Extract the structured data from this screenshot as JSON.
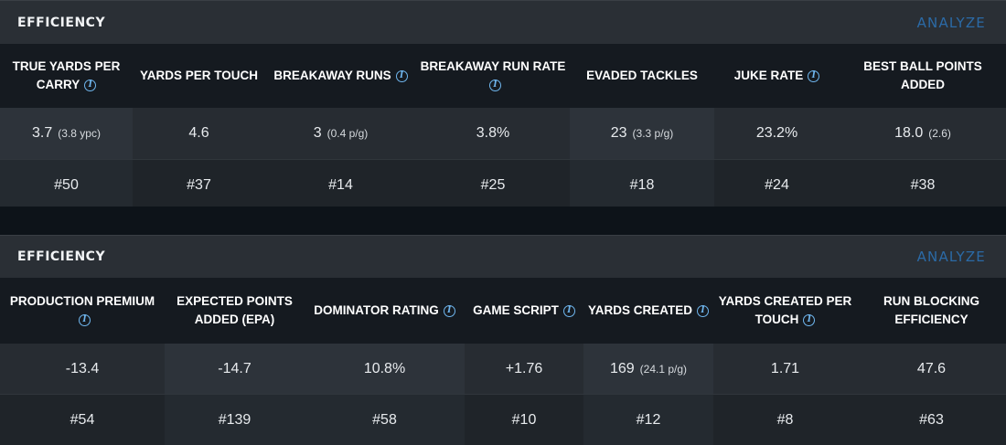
{
  "panels": [
    {
      "title": "EFFICIENCY",
      "action": "ANALYZE",
      "columns": [
        {
          "label": "TRUE YARDS PER CARRY",
          "info": true,
          "value": "3.7",
          "sub": "(3.8 ypc)",
          "rank": "#50"
        },
        {
          "label": "YARDS PER TOUCH",
          "info": false,
          "value": "4.6",
          "sub": "",
          "rank": "#37"
        },
        {
          "label": "BREAKAWAY RUNS",
          "info": true,
          "value": "3",
          "sub": "(0.4 p/g)",
          "rank": "#14"
        },
        {
          "label": "BREAKAWAY RUN RATE",
          "info": true,
          "value": "3.8%",
          "sub": "",
          "rank": "#25"
        },
        {
          "label": "EVADED TACKLES",
          "info": false,
          "value": "23",
          "sub": "(3.3 p/g)",
          "rank": "#18"
        },
        {
          "label": "JUKE RATE",
          "info": true,
          "value": "23.2%",
          "sub": "",
          "rank": "#24"
        },
        {
          "label": "BEST BALL POINTS ADDED",
          "info": false,
          "value": "18.0",
          "sub": "(2.6)",
          "rank": "#38"
        }
      ]
    },
    {
      "title": "EFFICIENCY",
      "action": "ANALYZE",
      "columns": [
        {
          "label": "PRODUCTION PREMIUM",
          "info": true,
          "value": "-13.4",
          "sub": "",
          "rank": "#54"
        },
        {
          "label": "EXPECTED POINTS ADDED (EPA)",
          "info": false,
          "value": "-14.7",
          "sub": "",
          "rank": "#139"
        },
        {
          "label": "DOMINATOR RATING",
          "info": true,
          "value": "10.8%",
          "sub": "",
          "rank": "#58"
        },
        {
          "label": "GAME SCRIPT",
          "info": true,
          "value": "+1.76",
          "sub": "",
          "rank": "#10"
        },
        {
          "label": "YARDS CREATED",
          "info": true,
          "value": "169",
          "sub": "(24.1 p/g)",
          "rank": "#12"
        },
        {
          "label": "YARDS CREATED PER TOUCH",
          "info": true,
          "value": "1.71",
          "sub": "",
          "rank": "#8"
        },
        {
          "label": "RUN BLOCKING EFFICIENCY",
          "info": false,
          "value": "47.6",
          "sub": "",
          "rank": "#63"
        }
      ]
    }
  ],
  "info_glyph": "i"
}
